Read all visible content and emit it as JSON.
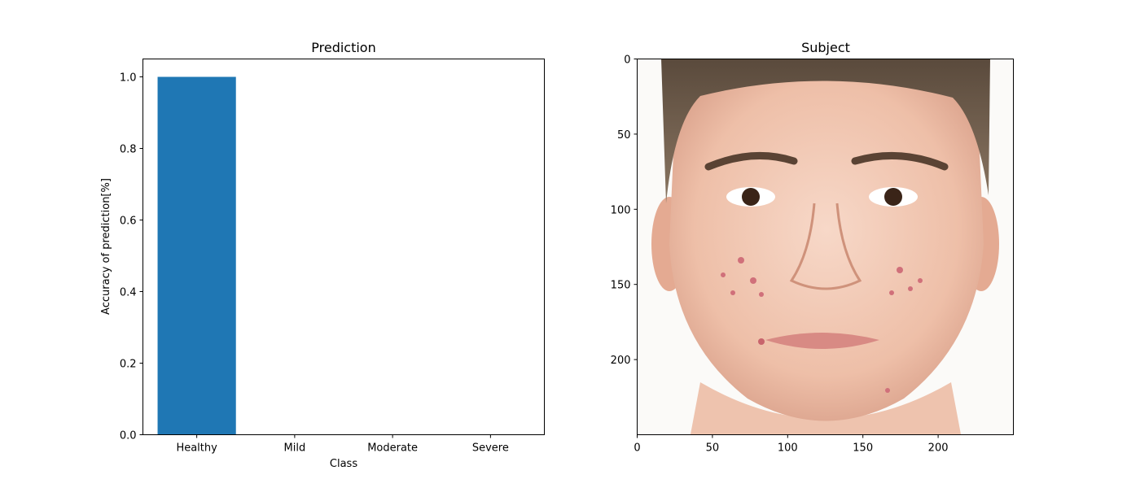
{
  "chart_data": [
    {
      "type": "bar",
      "title": "Prediction",
      "xlabel": "Class",
      "ylabel": "Accuracy of prediction[%]",
      "categories": [
        "Healthy",
        "Mild",
        "Moderate",
        "Severe"
      ],
      "values": [
        1.0,
        0.0,
        0.0,
        0.0
      ],
      "ylim": [
        0,
        1.05
      ],
      "yticks": [
        "0.0",
        "0.2",
        "0.4",
        "0.6",
        "0.8",
        "1.0"
      ],
      "bar_color": "#1f77b4",
      "grid": false
    },
    {
      "type": "image",
      "title": "Subject",
      "xlim": [
        0,
        250
      ],
      "ylim": [
        250,
        0
      ],
      "xticks": [
        "0",
        "50",
        "100",
        "150",
        "200"
      ],
      "yticks": [
        "0",
        "50",
        "100",
        "150",
        "200"
      ],
      "image": "front-facing portrait of a young man's face with acne on the cheeks"
    }
  ]
}
